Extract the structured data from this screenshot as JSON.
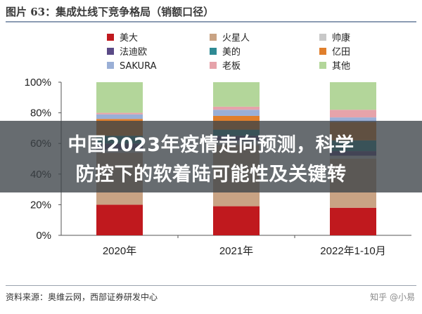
{
  "figure_title": "图片 63：集成灶线下竞争格局（销额口径）",
  "source_note": "资料来源：奥维云网，西部证券研发中心",
  "watermark": "知乎 @小易",
  "overlay": {
    "line1": "中国2023年疫情走向预测，科学",
    "line2": "防控下的软着陆可能性及关键转"
  },
  "colors": {
    "美大": "#c0191e",
    "火星人": "#c9a384",
    "帅康": "#c8c8c8",
    "法迪欧": "#5a4a86",
    "美的": "#2f8a94",
    "亿田": "#e07f2c",
    "SAKURA": "#9aafd6",
    "老板": "#e6a3aa",
    "其他": "#b3d69a"
  },
  "chart_data": {
    "type": "bar",
    "stacked": true,
    "categories": [
      "2020年",
      "2021年",
      "2022年1-10月"
    ],
    "series": [
      {
        "name": "美大",
        "values": [
          20,
          19,
          18
        ]
      },
      {
        "name": "火星人",
        "values": [
          34,
          40,
          32
        ]
      },
      {
        "name": "帅康",
        "values": [
          2,
          3,
          2
        ]
      },
      {
        "name": "法迪欧",
        "values": [
          4,
          3,
          3
        ]
      },
      {
        "name": "美的",
        "values": [
          5,
          4,
          7
        ]
      },
      {
        "name": "亿田",
        "values": [
          11,
          9,
          12
        ]
      },
      {
        "name": "SAKURA",
        "values": [
          3,
          4,
          3
        ]
      },
      {
        "name": "老板",
        "values": [
          1,
          2,
          5
        ]
      },
      {
        "name": "其他",
        "values": [
          20,
          16,
          18
        ]
      }
    ],
    "ylim": [
      0,
      100
    ],
    "yticks": [
      "0%",
      "20%",
      "40%",
      "60%",
      "80%",
      "100%"
    ],
    "legend": {
      "placement": "top",
      "columns": 3,
      "order": [
        "美大",
        "火星人",
        "帅康",
        "法迪欧",
        "美的",
        "亿田",
        "SAKURA",
        "老板",
        "其他"
      ]
    },
    "grid": false
  }
}
